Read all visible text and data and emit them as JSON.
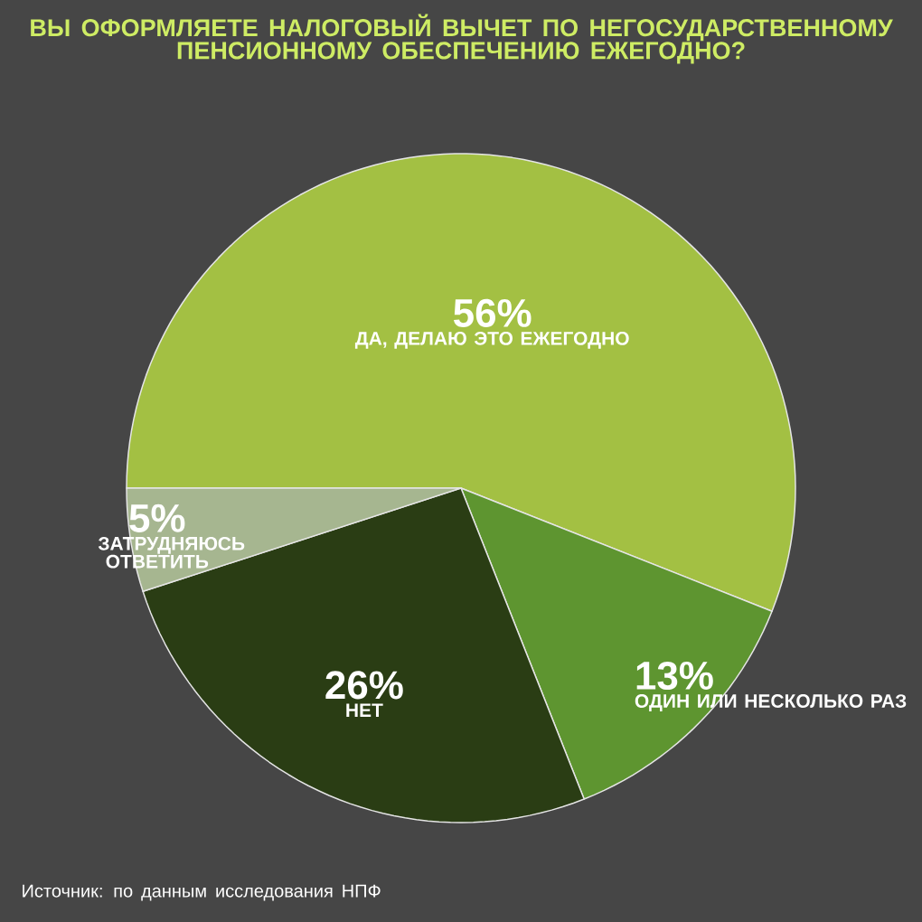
{
  "chart_data": {
    "type": "pie",
    "title": "ВЫ ОФОРМЛЯЕТЕ НАЛОГОВЫЙ ВЫЧЕТ ПО НЕГОСУДАРСТВЕННОМУ ПЕНСИОННОМУ ОБЕСПЕЧЕНИЮ ЕЖЕГОДНО?",
    "categories": [
      "ДА, ДЕЛАЮ ЭТО ЕЖЕГОДНО",
      "ОДИН ИЛИ НЕСКОЛЬКО РАЗ",
      "НЕТ",
      "ЗАТРУДНЯЮСЬ ОТВЕТИТЬ"
    ],
    "values": [
      56,
      13,
      26,
      5
    ],
    "value_labels": [
      "56%",
      "13%",
      "26%",
      "5%"
    ],
    "colors": [
      "#a3c043",
      "#5e9530",
      "#2a3d14",
      "#a6b690"
    ],
    "annotations": [
      "Источник: по данным исследования НПФ"
    ]
  }
}
